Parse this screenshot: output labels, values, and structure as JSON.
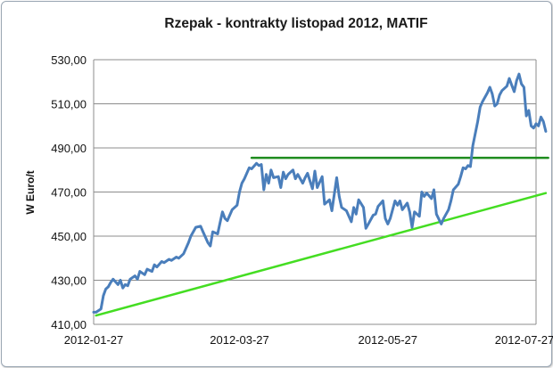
{
  "chart_data": {
    "type": "line",
    "title": "Rzepak - kontrakty listopad 2012, MATIF",
    "xlabel": "",
    "ylabel": "W Euro/t",
    "ylim": [
      410,
      530
    ],
    "yticks": [
      "410,00",
      "430,00",
      "450,00",
      "470,00",
      "490,00",
      "510,00",
      "530,00"
    ],
    "xticks": [
      "2012-01-27",
      "2012-03-27",
      "2012-05-27",
      "2012-07-27"
    ],
    "x_range": [
      "2012-01-27",
      "2012-07-27"
    ],
    "grid": "horizontal",
    "colors": {
      "price": "#4a7ebb",
      "resistance": "#1e8c1e",
      "support": "#44dd22"
    },
    "series": [
      {
        "style": "price",
        "points": [
          [
            "2012-01-27",
            415.5
          ],
          [
            "2012-01-28",
            415.5
          ],
          [
            "2012-01-30",
            417
          ],
          [
            "2012-01-31",
            423
          ],
          [
            "2012-02-01",
            426
          ],
          [
            "2012-02-02",
            427
          ],
          [
            "2012-02-03",
            429
          ],
          [
            "2012-02-04",
            430.5
          ],
          [
            "2012-02-06",
            428
          ],
          [
            "2012-02-07",
            430
          ],
          [
            "2012-02-08",
            426.5
          ],
          [
            "2012-02-09",
            428
          ],
          [
            "2012-02-10",
            427.5
          ],
          [
            "2012-02-11",
            430.5
          ],
          [
            "2012-02-13",
            432
          ],
          [
            "2012-02-14",
            430.5
          ],
          [
            "2012-02-15",
            434
          ],
          [
            "2012-02-17",
            432.5
          ],
          [
            "2012-02-18",
            435
          ],
          [
            "2012-02-20",
            434
          ],
          [
            "2012-02-21",
            437
          ],
          [
            "2012-02-22",
            436
          ],
          [
            "2012-02-24",
            438.5
          ],
          [
            "2012-02-25",
            438
          ],
          [
            "2012-02-27",
            439.5
          ],
          [
            "2012-02-28",
            439
          ],
          [
            "2012-03-01",
            440.5
          ],
          [
            "2012-03-02",
            440
          ],
          [
            "2012-03-04",
            442
          ],
          [
            "2012-03-06",
            447
          ],
          [
            "2012-03-07",
            450
          ],
          [
            "2012-03-09",
            454
          ],
          [
            "2012-03-11",
            454.5
          ],
          [
            "2012-03-12",
            452
          ],
          [
            "2012-03-14",
            447
          ],
          [
            "2012-03-15",
            445.5
          ],
          [
            "2012-03-16",
            452
          ],
          [
            "2012-03-18",
            451
          ],
          [
            "2012-03-19",
            456
          ],
          [
            "2012-03-20",
            461
          ],
          [
            "2012-03-21",
            458
          ],
          [
            "2012-03-22",
            457
          ],
          [
            "2012-03-24",
            462
          ],
          [
            "2012-03-26",
            464
          ],
          [
            "2012-03-27",
            470
          ],
          [
            "2012-03-28",
            474
          ],
          [
            "2012-03-29",
            476
          ],
          [
            "2012-03-31",
            481
          ],
          [
            "2012-04-01",
            480.5
          ],
          [
            "2012-04-03",
            483
          ],
          [
            "2012-04-04",
            482
          ],
          [
            "2012-04-05",
            482.5
          ],
          [
            "2012-04-06",
            471
          ],
          [
            "2012-04-07",
            478
          ],
          [
            "2012-04-08",
            474
          ],
          [
            "2012-04-09",
            480
          ],
          [
            "2012-04-10",
            476.5
          ],
          [
            "2012-04-12",
            477
          ],
          [
            "2012-04-13",
            472
          ],
          [
            "2012-04-14",
            479
          ],
          [
            "2012-04-15",
            476
          ],
          [
            "2012-04-16",
            478
          ],
          [
            "2012-04-18",
            480
          ],
          [
            "2012-04-19",
            476
          ],
          [
            "2012-04-20",
            478
          ],
          [
            "2012-04-22",
            474
          ],
          [
            "2012-04-23",
            476.5
          ],
          [
            "2012-04-24",
            478.5
          ],
          [
            "2012-04-26",
            471.5
          ],
          [
            "2012-04-27",
            479.5
          ],
          [
            "2012-04-28",
            472
          ],
          [
            "2012-04-30",
            477
          ],
          [
            "2012-05-01",
            464.5
          ],
          [
            "2012-05-03",
            466.5
          ],
          [
            "2012-05-04",
            461.5
          ],
          [
            "2012-05-06",
            476.5
          ],
          [
            "2012-05-07",
            468
          ],
          [
            "2012-05-08",
            463
          ],
          [
            "2012-05-10",
            461.5
          ],
          [
            "2012-05-12",
            456.5
          ],
          [
            "2012-05-13",
            463
          ],
          [
            "2012-05-14",
            460
          ],
          [
            "2012-05-15",
            466.5
          ],
          [
            "2012-05-17",
            463
          ],
          [
            "2012-05-18",
            453.5
          ],
          [
            "2012-05-19",
            455.5
          ],
          [
            "2012-05-21",
            459.5
          ],
          [
            "2012-05-22",
            460
          ],
          [
            "2012-05-23",
            463.5
          ],
          [
            "2012-05-25",
            466
          ],
          [
            "2012-05-26",
            458
          ],
          [
            "2012-05-27",
            455.5
          ],
          [
            "2012-05-28",
            458
          ],
          [
            "2012-05-30",
            466
          ],
          [
            "2012-05-31",
            464
          ],
          [
            "2012-06-01",
            466
          ],
          [
            "2012-06-02",
            462
          ],
          [
            "2012-06-04",
            465
          ],
          [
            "2012-06-05",
            461
          ],
          [
            "2012-06-06",
            454
          ],
          [
            "2012-06-07",
            461
          ],
          [
            "2012-06-09",
            459
          ],
          [
            "2012-06-10",
            470
          ],
          [
            "2012-06-11",
            468
          ],
          [
            "2012-06-12",
            469.5
          ],
          [
            "2012-06-14",
            467
          ],
          [
            "2012-06-15",
            471
          ],
          [
            "2012-06-16",
            460
          ],
          [
            "2012-06-18",
            455.5
          ],
          [
            "2012-06-19",
            458
          ],
          [
            "2012-06-21",
            462
          ],
          [
            "2012-06-22",
            466
          ],
          [
            "2012-06-23",
            471
          ],
          [
            "2012-06-25",
            473.5
          ],
          [
            "2012-06-26",
            477
          ],
          [
            "2012-06-27",
            481
          ],
          [
            "2012-06-28",
            480.5
          ],
          [
            "2012-06-29",
            482
          ],
          [
            "2012-06-30",
            481.5
          ],
          [
            "2012-07-01",
            491
          ],
          [
            "2012-07-03",
            502
          ],
          [
            "2012-07-04",
            508.5
          ],
          [
            "2012-07-05",
            511
          ],
          [
            "2012-07-07",
            515
          ],
          [
            "2012-07-08",
            517.5
          ],
          [
            "2012-07-09",
            514.5
          ],
          [
            "2012-07-10",
            509
          ],
          [
            "2012-07-11",
            510
          ],
          [
            "2012-07-12",
            514
          ],
          [
            "2012-07-13",
            516
          ],
          [
            "2012-07-15",
            518
          ],
          [
            "2012-07-16",
            521.5
          ],
          [
            "2012-07-17",
            518.5
          ],
          [
            "2012-07-18",
            515.5
          ],
          [
            "2012-07-19",
            520.5
          ],
          [
            "2012-07-20",
            523.5
          ],
          [
            "2012-07-21",
            519
          ],
          [
            "2012-07-22",
            517.5
          ],
          [
            "2012-07-23",
            504.5
          ],
          [
            "2012-07-24",
            507
          ],
          [
            "2012-07-25",
            500
          ],
          [
            "2012-07-26",
            499
          ],
          [
            "2012-07-27",
            501
          ],
          [
            "2012-07-28",
            500
          ],
          [
            "2012-07-29",
            504
          ],
          [
            "2012-07-30",
            502
          ],
          [
            "2012-07-31",
            497.5
          ]
        ]
      },
      {
        "style": "resistance",
        "points": [
          [
            "2012-04-01",
            485.5
          ],
          [
            "2012-08-01",
            485.5
          ]
        ]
      },
      {
        "style": "support",
        "points": [
          [
            "2012-01-28",
            414
          ],
          [
            "2012-07-31",
            469.5
          ]
        ]
      }
    ]
  }
}
